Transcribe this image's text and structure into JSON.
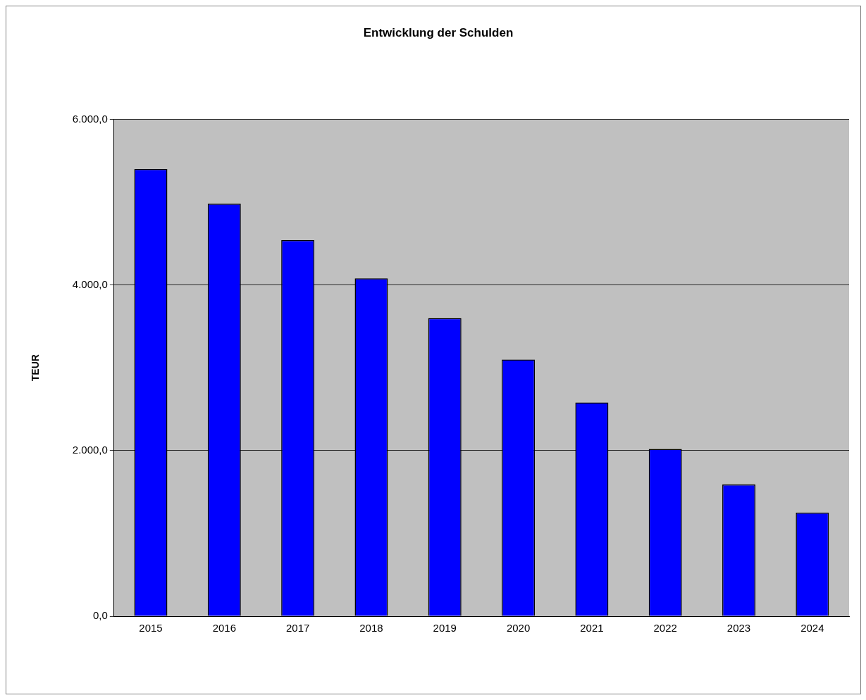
{
  "chart_data": {
    "type": "bar",
    "title": "Entwicklung der Schulden",
    "ylabel": "TEUR",
    "categories": [
      "2015",
      "2016",
      "2017",
      "2018",
      "2019",
      "2020",
      "2021",
      "2022",
      "2023",
      "2024"
    ],
    "values": [
      5400,
      4980,
      4540,
      4080,
      3600,
      3100,
      2580,
      2020,
      1590,
      1250
    ],
    "color": "#0000ff",
    "ylim": [
      0,
      6000
    ],
    "yticks": [
      {
        "value": 0,
        "label": "0,0"
      },
      {
        "value": 2000,
        "label": "2.000,0"
      },
      {
        "value": 4000,
        "label": "4.000,0"
      },
      {
        "value": 6000,
        "label": "6.000,0"
      }
    ],
    "grid": "y"
  }
}
